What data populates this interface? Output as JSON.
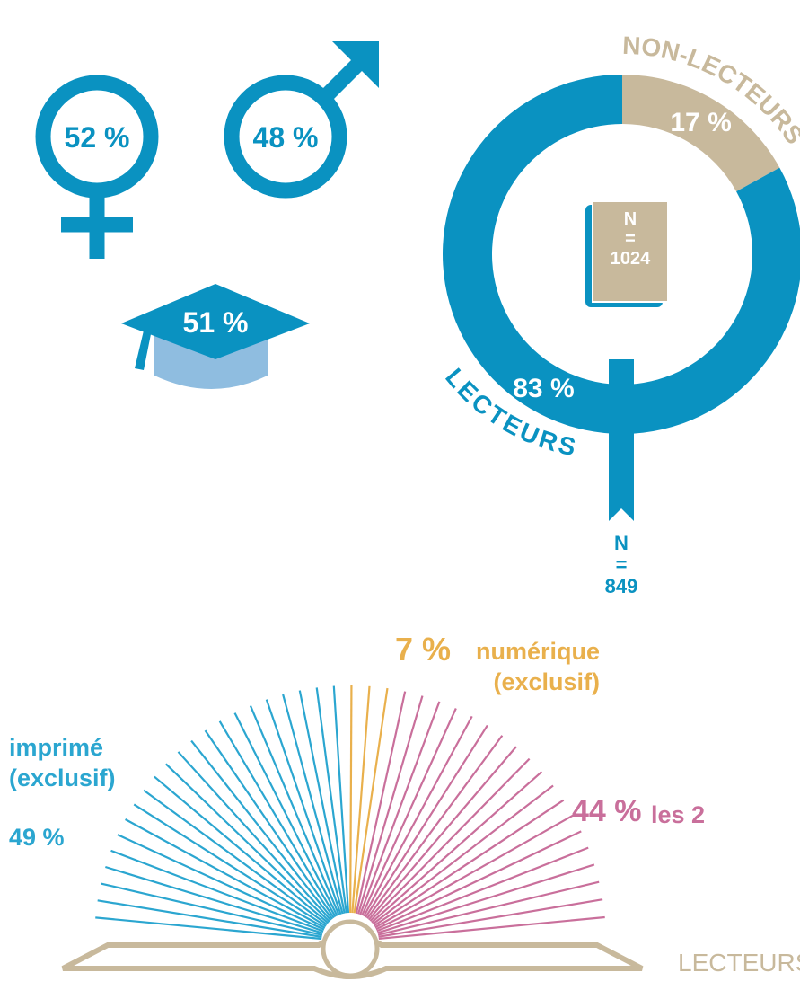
{
  "pictograms": {
    "female": "52 %",
    "male": "48 %",
    "graduate": "51 %"
  },
  "chart_data": [
    {
      "type": "donut",
      "categories": [
        "NON-LECTEURS",
        "LECTEURS"
      ],
      "values": [
        17,
        83
      ],
      "value_labels": [
        "17 %",
        "83 %"
      ],
      "colors": [
        "#c8b99c",
        "#0a92c1"
      ],
      "center_label": [
        "N",
        "=",
        "1024"
      ],
      "ribbon_label": [
        "N",
        "=",
        "849"
      ]
    },
    {
      "type": "fan",
      "title": "LECTEURS",
      "categories": [
        "imprimé (exclusif)",
        "numérique (exclusif)",
        "les 2"
      ],
      "values": [
        49,
        7,
        44
      ],
      "value_labels": [
        "49 %",
        "7 %",
        "44 %"
      ],
      "colors": [
        "#2ba6d0",
        "#e9b04c",
        "#c96f9b"
      ]
    }
  ]
}
